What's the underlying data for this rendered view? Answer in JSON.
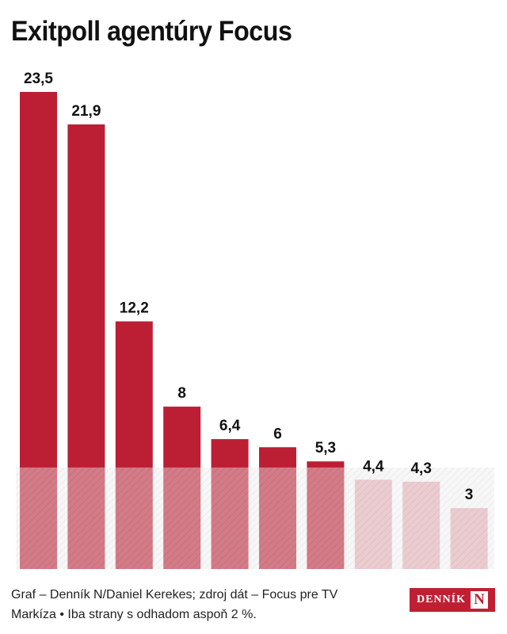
{
  "title": "Exitpoll agentúry Focus",
  "footer": {
    "line1": "Graf – Denník N/Daniel Kerekes; zdroj dát – Focus pre TV",
    "line2": "Markíza • Iba strany s odhadom aspoň 2 %."
  },
  "logo": {
    "text": "DENNÍK",
    "mark": "N",
    "color": "#c01f33"
  },
  "chart_data": {
    "type": "bar",
    "title": "Exitpoll agentúry Focus",
    "xlabel": "",
    "ylabel": "",
    "grid": false,
    "legend": "none",
    "values": [
      23.5,
      21.9,
      12.2,
      8,
      6.4,
      6,
      5.3,
      4.4,
      4.3,
      3
    ],
    "value_labels": [
      "23,5",
      "21,9",
      "12,2",
      "8",
      "6,4",
      "6",
      "5,3",
      "4,4",
      "4,3",
      "3"
    ],
    "ylim": [
      0,
      23.5
    ],
    "threshold": 5,
    "colors": {
      "above_threshold": "#bc1f34",
      "below_threshold": "#e8b0b8",
      "threshold_band": "#dcdcdc",
      "label": "#111111"
    }
  }
}
